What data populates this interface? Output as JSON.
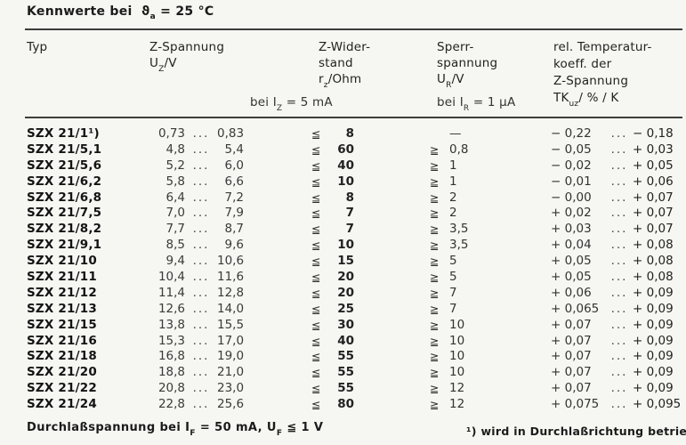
{
  "colors": {
    "paper": "#f6f6f2",
    "ink": "#1b1b1b"
  },
  "title": {
    "pre": "Kennwerte bei",
    "theta": "ϑ",
    "theta_sub": "a",
    "post": "= 25 °C"
  },
  "header": {
    "typ": "Typ",
    "z_spannung": {
      "l1": "Z-Spannung",
      "u": "U",
      "u_sub": "Z",
      "u_unit": "/V"
    },
    "bei_iz": {
      "p1": "bei I",
      "sub": "Z",
      "p2": " = 5 mA"
    },
    "z_widerstand": {
      "l1": "Z-Wider-",
      "l2": "stand",
      "r": "r",
      "r_sub": "z",
      "r_unit": "/Ohm"
    },
    "sperrspannung": {
      "l1": "Sperr-",
      "l2": "spannung",
      "u": "U",
      "u_sub": "R",
      "u_unit": "/V",
      "bei_p1": "bei I",
      "bei_sub": "R",
      "bei_p2": " = 1 μA"
    },
    "tk": {
      "l1": "rel. Temperatur-",
      "l2": "koeff. der",
      "l3": "Z-Spannung",
      "t": "TK",
      "t_sub": "uz",
      "t_unit": "/ % / K"
    }
  },
  "symbols": {
    "dots": "...",
    "le": "≦",
    "ge": "≧"
  },
  "rows": [
    {
      "typ": "SZX 21/1¹)",
      "zmin": "0,73",
      "zmax": "0,83",
      "rz": "8",
      "ur_sym": "",
      "ur": "—",
      "tkmin": "− 0,22",
      "tkmax": "− 0,18"
    },
    {
      "typ": "SZX 21/5,1",
      "zmin": "4,8",
      "zmax": "5,4",
      "rz": "60",
      "ur_sym": "≧",
      "ur": "0,8",
      "tkmin": "− 0,05",
      "tkmax": "+ 0,03"
    },
    {
      "typ": "SZX 21/5,6",
      "zmin": "5,2",
      "zmax": "6,0",
      "rz": "40",
      "ur_sym": "≧",
      "ur": "1",
      "tkmin": "− 0,02",
      "tkmax": "+ 0,05"
    },
    {
      "typ": "SZX 21/6,2",
      "zmin": "5,8",
      "zmax": "6,6",
      "rz": "10",
      "ur_sym": "≧",
      "ur": "1",
      "tkmin": "− 0,01",
      "tkmax": "+ 0,06"
    },
    {
      "typ": "SZX 21/6,8",
      "zmin": "6,4",
      "zmax": "7,2",
      "rz": "8",
      "ur_sym": "≧",
      "ur": "2",
      "tkmin": "− 0,00",
      "tkmax": "+ 0,07"
    },
    {
      "typ": "SZX 21/7,5",
      "zmin": "7,0",
      "zmax": "7,9",
      "rz": "7",
      "ur_sym": "≧",
      "ur": "2",
      "tkmin": "+ 0,02",
      "tkmax": "+ 0,07"
    },
    {
      "typ": "SZX 21/8,2",
      "zmin": "7,7",
      "zmax": "8,7",
      "rz": "7",
      "ur_sym": "≧",
      "ur": "3,5",
      "tkmin": "+ 0,03",
      "tkmax": "+ 0,07"
    },
    {
      "typ": "SZX 21/9,1",
      "zmin": "8,5",
      "zmax": "9,6",
      "rz": "10",
      "ur_sym": "≧",
      "ur": "3,5",
      "tkmin": "+ 0,04",
      "tkmax": "+ 0,08"
    },
    {
      "typ": "SZX 21/10",
      "zmin": "9,4",
      "zmax": "10,6",
      "rz": "15",
      "ur_sym": "≧",
      "ur": "5",
      "tkmin": "+ 0,05",
      "tkmax": "+ 0,08"
    },
    {
      "typ": "SZX 21/11",
      "zmin": "10,4",
      "zmax": "11,6",
      "rz": "20",
      "ur_sym": "≧",
      "ur": "5",
      "tkmin": "+ 0,05",
      "tkmax": "+ 0,08"
    },
    {
      "typ": "SZX 21/12",
      "zmin": "11,4",
      "zmax": "12,8",
      "rz": "20",
      "ur_sym": "≧",
      "ur": "7",
      "tkmin": "+ 0,06",
      "tkmax": "+ 0,09"
    },
    {
      "typ": "SZX 21/13",
      "zmin": "12,6",
      "zmax": "14,0",
      "rz": "25",
      "ur_sym": "≧",
      "ur": "7",
      "tkmin": "+ 0,065",
      "tkmax": "+ 0,09"
    },
    {
      "typ": "SZX 21/15",
      "zmin": "13,8",
      "zmax": "15,5",
      "rz": "30",
      "ur_sym": "≧",
      "ur": "10",
      "tkmin": "+ 0,07",
      "tkmax": "+ 0,09"
    },
    {
      "typ": "SZX 21/16",
      "zmin": "15,3",
      "zmax": "17,0",
      "rz": "40",
      "ur_sym": "≧",
      "ur": "10",
      "tkmin": "+ 0,07",
      "tkmax": "+ 0,09"
    },
    {
      "typ": "SZX 21/18",
      "zmin": "16,8",
      "zmax": "19,0",
      "rz": "55",
      "ur_sym": "≧",
      "ur": "10",
      "tkmin": "+ 0,07",
      "tkmax": "+ 0,09"
    },
    {
      "typ": "SZX 21/20",
      "zmin": "18,8",
      "zmax": "21,0",
      "rz": "55",
      "ur_sym": "≧",
      "ur": "10",
      "tkmin": "+ 0,07",
      "tkmax": "+ 0,09"
    },
    {
      "typ": "SZX 21/22",
      "zmin": "20,8",
      "zmax": "23,0",
      "rz": "55",
      "ur_sym": "≧",
      "ur": "12",
      "tkmin": "+ 0,07",
      "tkmax": "+ 0,09"
    },
    {
      "typ": "SZX 21/24",
      "zmin": "22,8",
      "zmax": "25,6",
      "rz": "80",
      "ur_sym": "≧",
      "ur": "12",
      "tkmin": "+ 0,075",
      "tkmax": "+ 0,095"
    }
  ],
  "footnotes": {
    "left": {
      "p1": "Durchlaßspannung bei ",
      "i": "I",
      "i_sub": "F",
      "p2": " = 50 mA, ",
      "u": "U",
      "u_sub": "F",
      "p3": " ≦ 1 V"
    },
    "right": {
      "marker": "¹)",
      "text": " wird in Durchlaßrichtung betrieben"
    }
  }
}
